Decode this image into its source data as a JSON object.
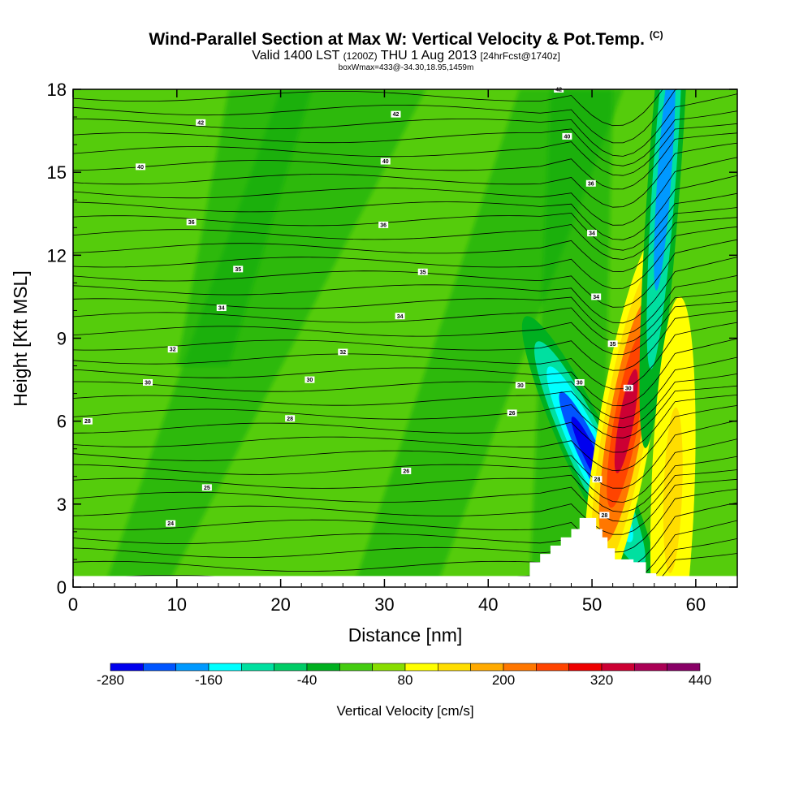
{
  "header": {
    "title": "Wind-Parallel Section at Max W: Vertical Velocity & Pot.Temp.",
    "copyright": "(C)",
    "valid_prefix": "Valid 1400 LST",
    "valid_utc": "(1200Z)",
    "valid_date": "THU 1 Aug 2013",
    "forecast": "[24hrFcst@1740z]",
    "box_info": "boxWmax=433@-34.30,18.95,1459m"
  },
  "chart_data": {
    "type": "contour-cross-section",
    "xlabel": "Distance [nm]",
    "ylabel": "Height [Kft MSL]",
    "xlim": [
      0,
      64
    ],
    "ylim": [
      0,
      18
    ],
    "xticks": [
      "0",
      "10",
      "20",
      "30",
      "40",
      "50",
      "60"
    ],
    "xtick_values": [
      0,
      10,
      20,
      30,
      40,
      50,
      60
    ],
    "yticks": [
      "0",
      "3",
      "6",
      "9",
      "12",
      "15",
      "18"
    ],
    "ytick_values": [
      0,
      3,
      6,
      9,
      12,
      15,
      18
    ],
    "colorbar": {
      "title": "Vertical Velocity [cm/s]",
      "labels": [
        "-280",
        "-160",
        "-40",
        "80",
        "200",
        "320",
        "440"
      ],
      "label_values": [
        -280,
        -160,
        -40,
        80,
        200,
        320,
        440
      ],
      "min": -280,
      "max": 440,
      "colors": [
        "#0000ee",
        "#0055ff",
        "#0099ff",
        "#00ffff",
        "#00e0a0",
        "#00cc66",
        "#00b020",
        "#44cc11",
        "#88dd00",
        "#ffff00",
        "#ffdd00",
        "#ffaa00",
        "#ff7700",
        "#ff4400",
        "#ee0000",
        "#cc0033",
        "#aa0055",
        "#880066"
      ]
    },
    "terrain_profile": [
      [
        44,
        0
      ],
      [
        44,
        0.9
      ],
      [
        45,
        0.9
      ],
      [
        45,
        1.2
      ],
      [
        46,
        1.2
      ],
      [
        46,
        1.5
      ],
      [
        47,
        1.5
      ],
      [
        47,
        1.8
      ],
      [
        48,
        1.8
      ],
      [
        48,
        2.1
      ],
      [
        48.8,
        2.1
      ],
      [
        48.8,
        2.5
      ],
      [
        50.4,
        2.5
      ],
      [
        50.4,
        2.1
      ],
      [
        51,
        2.1
      ],
      [
        51,
        1.8
      ],
      [
        51.5,
        1.8
      ],
      [
        51.5,
        1.4
      ],
      [
        52.2,
        1.4
      ],
      [
        52.2,
        1.0
      ],
      [
        54,
        1.0
      ],
      [
        54,
        0.9
      ],
      [
        55.2,
        0.9
      ],
      [
        55.2,
        0.5
      ],
      [
        56.2,
        0.5
      ],
      [
        56.2,
        0
      ],
      [
        44,
        0
      ]
    ],
    "velocity_features": [
      {
        "name": "downdraft-core",
        "x": 49.8,
        "y": 4.8,
        "value": -280
      },
      {
        "name": "updraft-core",
        "x": 53.3,
        "y": 6.0,
        "value": 320
      },
      {
        "name": "upper-downdraft-band",
        "x": 57,
        "y": 15,
        "value": -180
      },
      {
        "name": "secondary-updraft",
        "x": 57.8,
        "y": 3.5,
        "value": 140
      }
    ],
    "isentrope_labels": [
      {
        "text": "24",
        "x": 9.4,
        "y": 2.3
      },
      {
        "text": "25",
        "x": 12.9,
        "y": 3.6
      },
      {
        "text": "26",
        "x": 32.1,
        "y": 4.2
      },
      {
        "text": "28",
        "x": 20.9,
        "y": 6.1
      },
      {
        "text": "26",
        "x": 42.3,
        "y": 6.3
      },
      {
        "text": "28",
        "x": 1.4,
        "y": 6.0
      },
      {
        "text": "30",
        "x": 7.2,
        "y": 7.4
      },
      {
        "text": "30",
        "x": 22.8,
        "y": 7.5
      },
      {
        "text": "30",
        "x": 43.1,
        "y": 7.3
      },
      {
        "text": "32",
        "x": 9.6,
        "y": 8.6
      },
      {
        "text": "32",
        "x": 26.0,
        "y": 8.5
      },
      {
        "text": "34",
        "x": 14.3,
        "y": 10.1
      },
      {
        "text": "34",
        "x": 31.5,
        "y": 9.8
      },
      {
        "text": "35",
        "x": 15.9,
        "y": 11.5
      },
      {
        "text": "35",
        "x": 33.7,
        "y": 11.4
      },
      {
        "text": "36",
        "x": 11.4,
        "y": 13.2
      },
      {
        "text": "36",
        "x": 29.9,
        "y": 13.1
      },
      {
        "text": "40",
        "x": 6.5,
        "y": 15.2
      },
      {
        "text": "40",
        "x": 30.1,
        "y": 15.4
      },
      {
        "text": "42",
        "x": 12.3,
        "y": 16.8
      },
      {
        "text": "42",
        "x": 31.1,
        "y": 17.1
      },
      {
        "text": "42",
        "x": 46.8,
        "y": 18.0
      },
      {
        "text": "40",
        "x": 47.6,
        "y": 16.3
      },
      {
        "text": "36",
        "x": 49.9,
        "y": 14.6
      },
      {
        "text": "34",
        "x": 50.0,
        "y": 12.8
      },
      {
        "text": "34",
        "x": 50.4,
        "y": 10.5
      },
      {
        "text": "35",
        "x": 52.0,
        "y": 8.8
      },
      {
        "text": "30",
        "x": 53.5,
        "y": 7.2
      },
      {
        "text": "30",
        "x": 48.8,
        "y": 7.4
      },
      {
        "text": "28",
        "x": 50.5,
        "y": 3.9
      },
      {
        "text": "28",
        "x": 51.2,
        "y": 2.6
      }
    ]
  }
}
